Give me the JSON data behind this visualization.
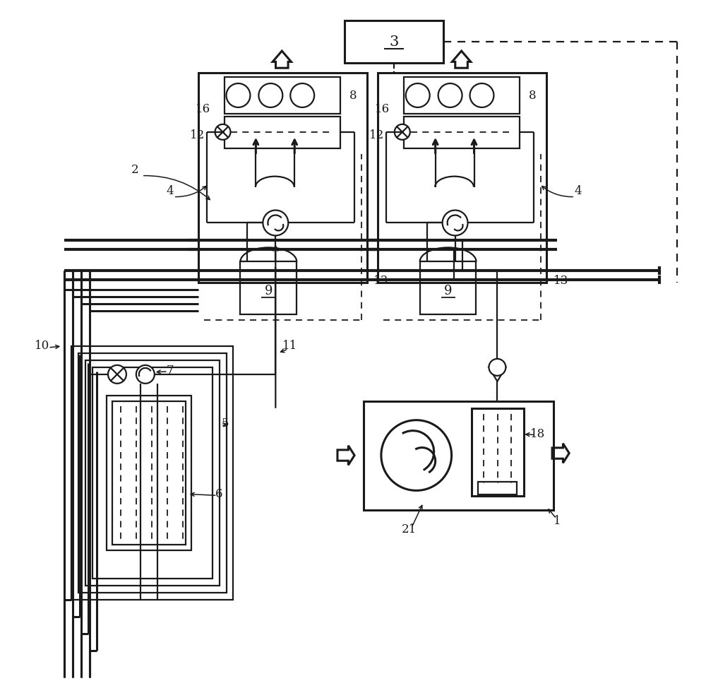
{
  "bg_color": "#ffffff",
  "lc": "#1a1a1a",
  "lw": 1.6,
  "lw2": 2.2,
  "lw3": 3.0,
  "figsize": [
    10.0,
    9.64
  ],
  "dpi": 100
}
